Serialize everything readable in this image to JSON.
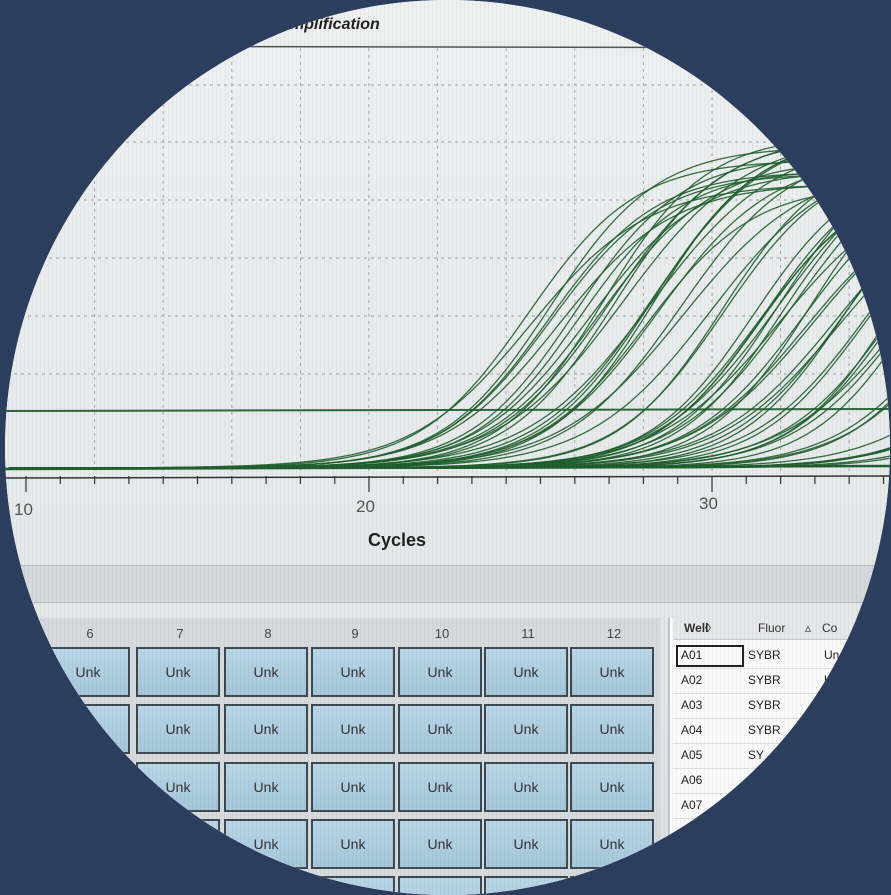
{
  "chart": {
    "title": "mplification",
    "xlabel": "Cycles",
    "xticks": [
      "10",
      "20",
      "30"
    ]
  },
  "chart_data": {
    "type": "line",
    "title": "mplification",
    "xlabel": "Cycles",
    "ylabel": "",
    "xlim": [
      9.6,
      41.5
    ],
    "grid": true,
    "threshold_visible": true,
    "x_tick_labels": [
      "10",
      "20",
      "30"
    ],
    "series_count": 60,
    "curve_midpoint_cycles_range": [
      23.5,
      41
    ],
    "line_color": "#1f5f2e"
  },
  "plate": {
    "columns": [
      "6",
      "7",
      "8",
      "9",
      "10",
      "11",
      "12"
    ],
    "well_label": "Unk"
  },
  "well_table": {
    "headers": [
      "Well",
      "◊",
      "Fluor",
      "▵",
      "Co"
    ],
    "rows": [
      {
        "well": "A01",
        "fluor": "SYBR",
        "content": "Un"
      },
      {
        "well": "A02",
        "fluor": "SYBR",
        "content": "U"
      },
      {
        "well": "A03",
        "fluor": "SYBR",
        "content": ""
      },
      {
        "well": "A04",
        "fluor": "SYBR",
        "content": ""
      },
      {
        "well": "A05",
        "fluor": "SY",
        "content": ""
      },
      {
        "well": "A06",
        "fluor": "",
        "content": ""
      },
      {
        "well": "A07",
        "fluor": "",
        "content": ""
      }
    ]
  }
}
